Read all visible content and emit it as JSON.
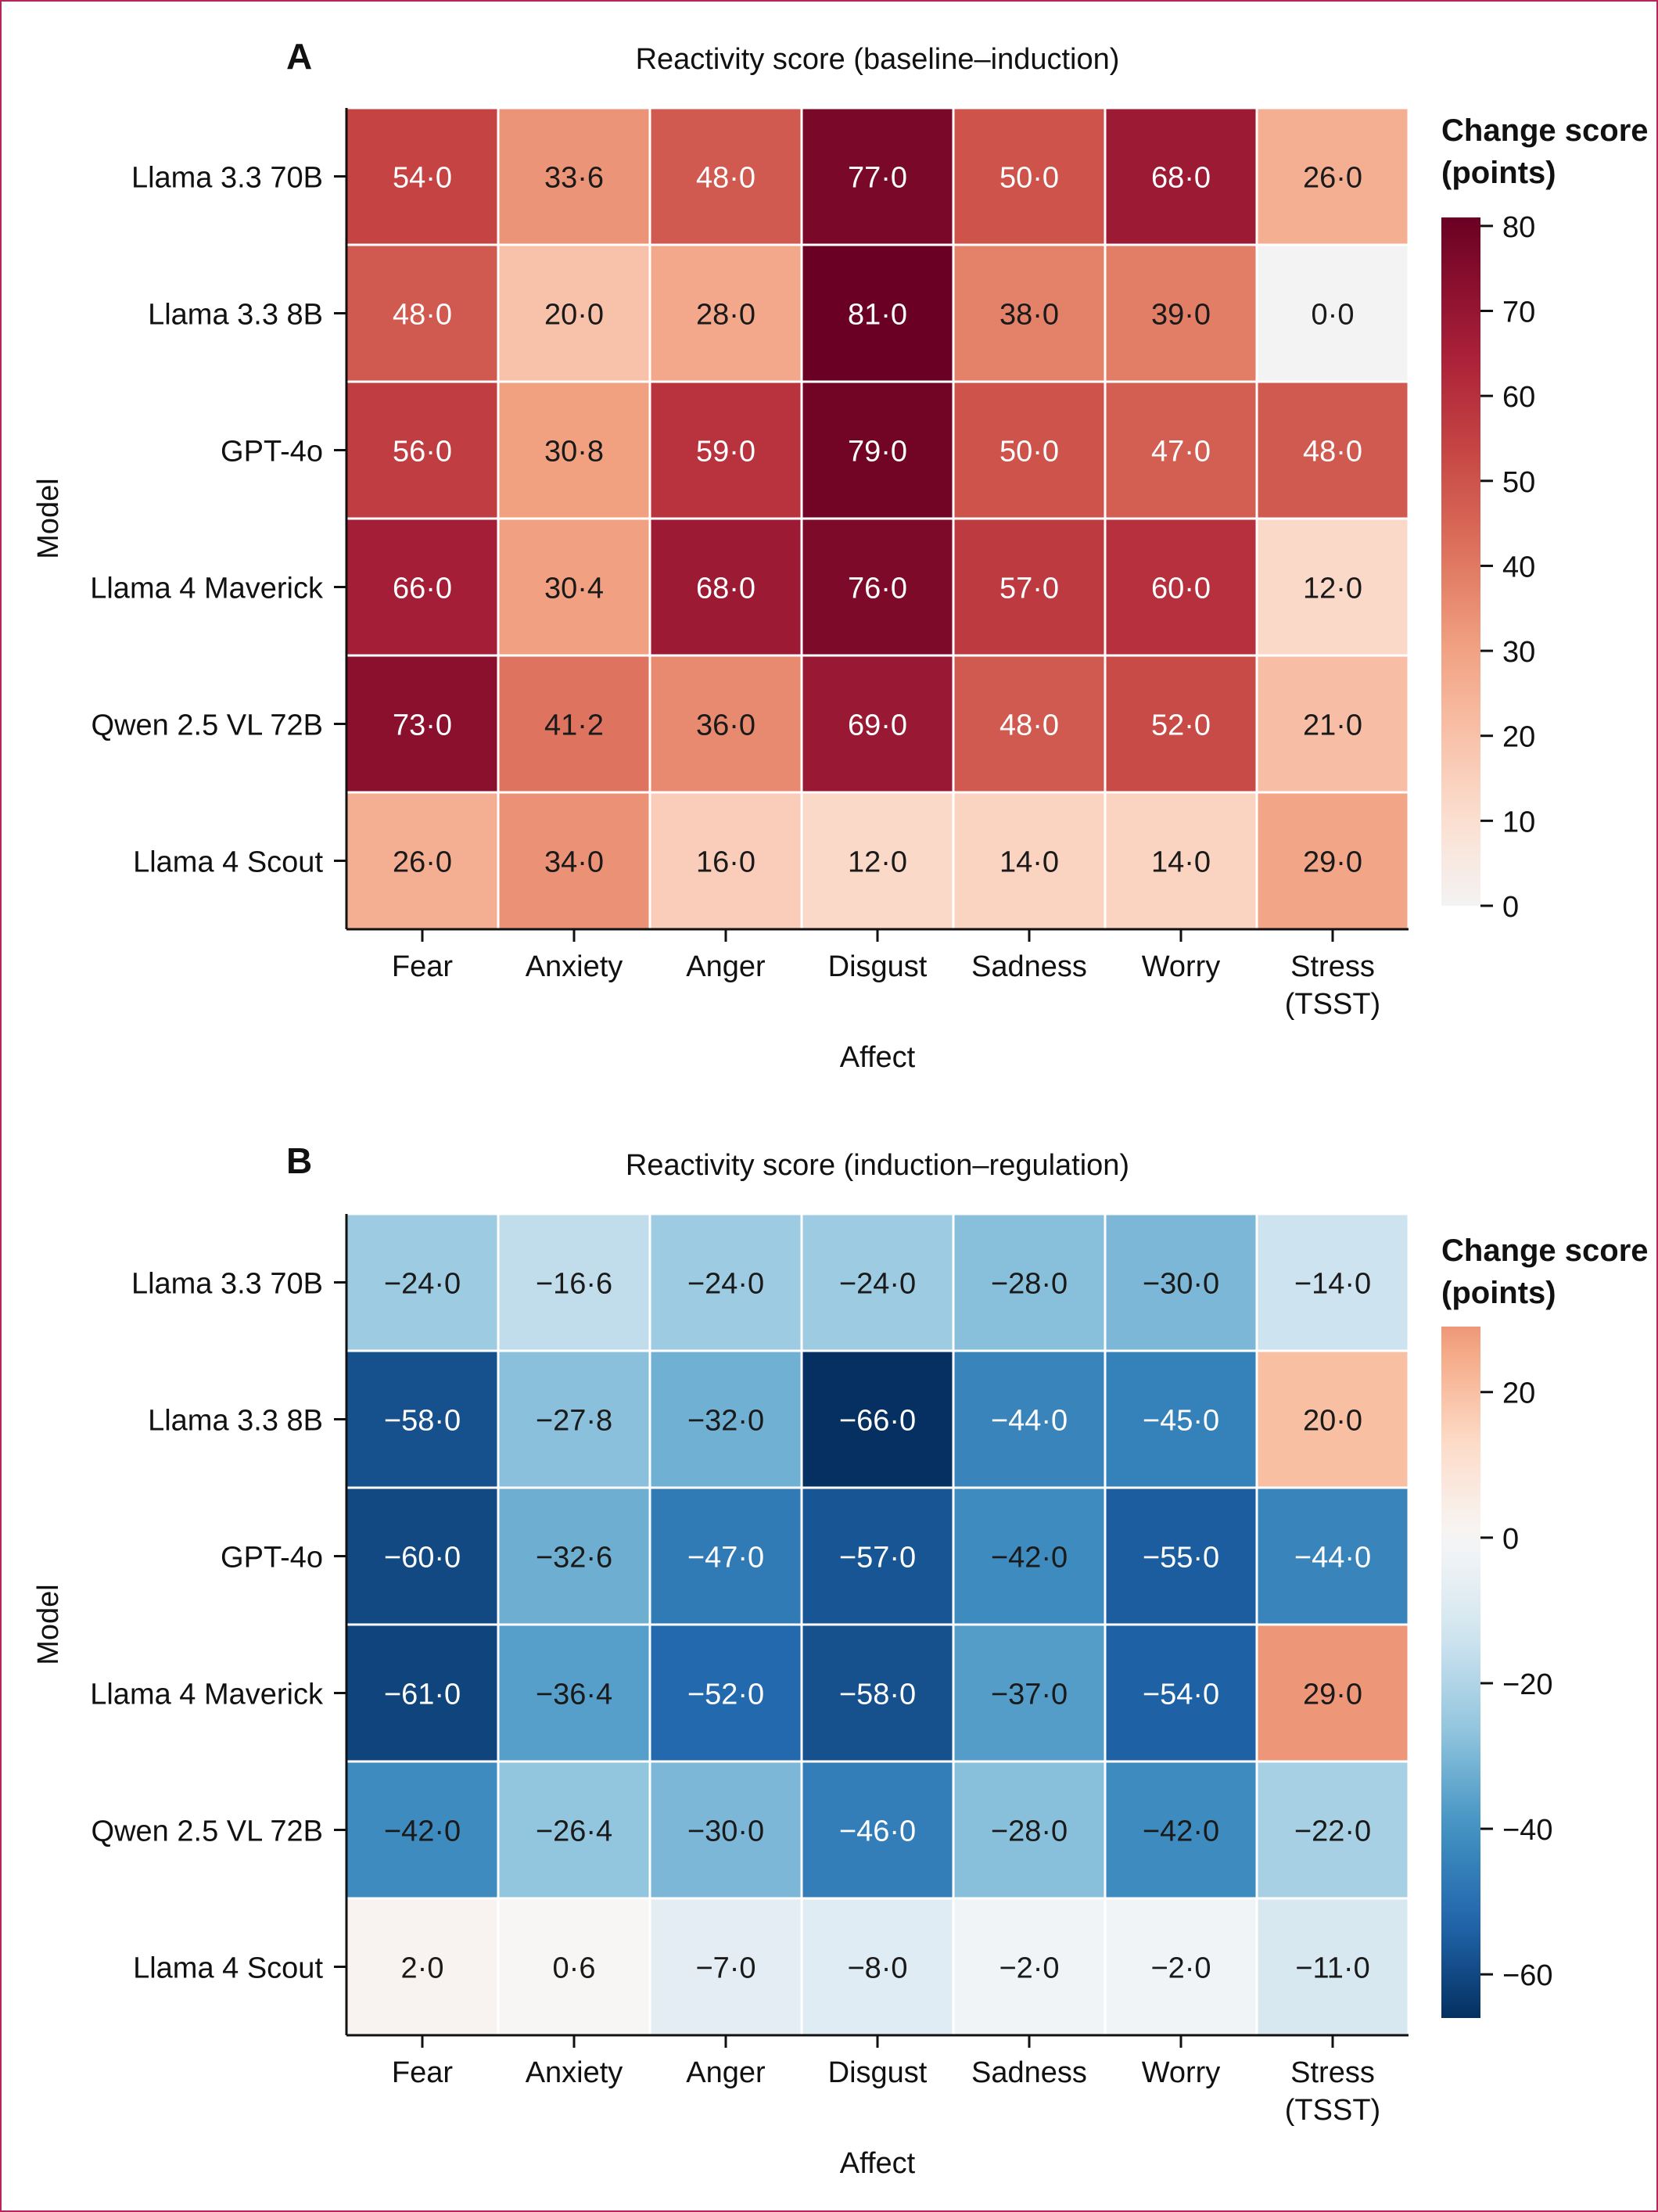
{
  "chart_data": [
    {
      "type": "heatmap",
      "panel_label": "A",
      "title": "Reactivity score (baseline–induction)",
      "xlabel": "Affect",
      "ylabel": "Model",
      "x": [
        "Fear",
        "Anxiety",
        "Anger",
        "Disgust",
        "Sadness",
        "Worry",
        "Stress\n(TSST)"
      ],
      "y": [
        "Llama 3.3 70B",
        "Llama 3.3 8B",
        "GPT-4o",
        "Llama 4 Maverick",
        "Qwen 2.5 VL 72B",
        "Llama 4 Scout"
      ],
      "values": [
        [
          54.0,
          33.6,
          48.0,
          77.0,
          50.0,
          68.0,
          26.0
        ],
        [
          48.0,
          20.0,
          28.0,
          81.0,
          38.0,
          39.0,
          0.0
        ],
        [
          56.0,
          30.8,
          59.0,
          79.0,
          50.0,
          47.0,
          48.0
        ],
        [
          66.0,
          30.4,
          68.0,
          76.0,
          57.0,
          60.0,
          12.0
        ],
        [
          73.0,
          41.2,
          36.0,
          69.0,
          48.0,
          52.0,
          21.0
        ],
        [
          26.0,
          34.0,
          16.0,
          12.0,
          14.0,
          14.0,
          29.0
        ]
      ],
      "cell_labels": [
        [
          "54·0",
          "33·6",
          "48·0",
          "77·0",
          "50·0",
          "68·0",
          "26·0"
        ],
        [
          "48·0",
          "20·0",
          "28·0",
          "81·0",
          "38·0",
          "39·0",
          "0·0"
        ],
        [
          "56·0",
          "30·8",
          "59·0",
          "79·0",
          "50·0",
          "47·0",
          "48·0"
        ],
        [
          "66·0",
          "30·4",
          "68·0",
          "76·0",
          "57·0",
          "60·0",
          "12·0"
        ],
        [
          "73·0",
          "41·2",
          "36·0",
          "69·0",
          "48·0",
          "52·0",
          "21·0"
        ],
        [
          "26·0",
          "34·0",
          "16·0",
          "12·0",
          "14·0",
          "14·0",
          "29·0"
        ]
      ],
      "colorbar": {
        "title_lines": [
          "Change score",
          "(points)"
        ],
        "vmin": 0,
        "vmax": 81,
        "ticks": [
          0,
          10,
          20,
          30,
          40,
          50,
          60,
          70,
          80
        ],
        "tick_labels": [
          "0",
          "10",
          "20",
          "30",
          "40",
          "50",
          "60",
          "70",
          "80"
        ],
        "colormap": "Reds (RdBu_r upper half)"
      },
      "grid": false
    },
    {
      "type": "heatmap",
      "panel_label": "B",
      "title": "Reactivity score (induction–regulation)",
      "xlabel": "Affect",
      "ylabel": "Model",
      "x": [
        "Fear",
        "Anxiety",
        "Anger",
        "Disgust",
        "Sadness",
        "Worry",
        "Stress\n(TSST)"
      ],
      "y": [
        "Llama 3.3 70B",
        "Llama 3.3 8B",
        "GPT-4o",
        "Llama 4 Maverick",
        "Qwen 2.5 VL 72B",
        "Llama 4 Scout"
      ],
      "values": [
        [
          -24.0,
          -16.6,
          -24.0,
          -24.0,
          -28.0,
          -30.0,
          -14.0
        ],
        [
          -58.0,
          -27.8,
          -32.0,
          -66.0,
          -44.0,
          -45.0,
          20.0
        ],
        [
          -60.0,
          -32.6,
          -47.0,
          -57.0,
          -42.0,
          -55.0,
          -44.0
        ],
        [
          -61.0,
          -36.4,
          -52.0,
          -58.0,
          -37.0,
          -54.0,
          29.0
        ],
        [
          -42.0,
          -26.4,
          -30.0,
          -46.0,
          -28.0,
          -42.0,
          -22.0
        ],
        [
          2.0,
          0.6,
          -7.0,
          -8.0,
          -2.0,
          -2.0,
          -11.0
        ]
      ],
      "cell_labels": [
        [
          "−24·0",
          "−16·6",
          "−24·0",
          "−24·0",
          "−28·0",
          "−30·0",
          "−14·0"
        ],
        [
          "−58·0",
          "−27·8",
          "−32·0",
          "−66·0",
          "−44·0",
          "−45·0",
          "20·0"
        ],
        [
          "−60·0",
          "−32·6",
          "−47·0",
          "−57·0",
          "−42·0",
          "−55·0",
          "−44·0"
        ],
        [
          "−61·0",
          "−36·4",
          "−52·0",
          "−58·0",
          "−37·0",
          "−54·0",
          "29·0"
        ],
        [
          "−42·0",
          "−26·4",
          "−30·0",
          "−46·0",
          "−28·0",
          "−42·0",
          "−22·0"
        ],
        [
          "2·0",
          "0·6",
          "−7·0",
          "−8·0",
          "−2·0",
          "−2·0",
          "−11·0"
        ]
      ],
      "colorbar": {
        "title_lines": [
          "Change score",
          "(points)"
        ],
        "vmin": -66,
        "vmax": 29,
        "ticks": [
          20,
          0,
          -20,
          -40,
          -60
        ],
        "tick_labels": [
          "20",
          "0",
          "−20",
          "−40",
          "−60"
        ],
        "colormap": "RdBu_r (diverging, centred at 0)"
      },
      "grid": false
    }
  ]
}
